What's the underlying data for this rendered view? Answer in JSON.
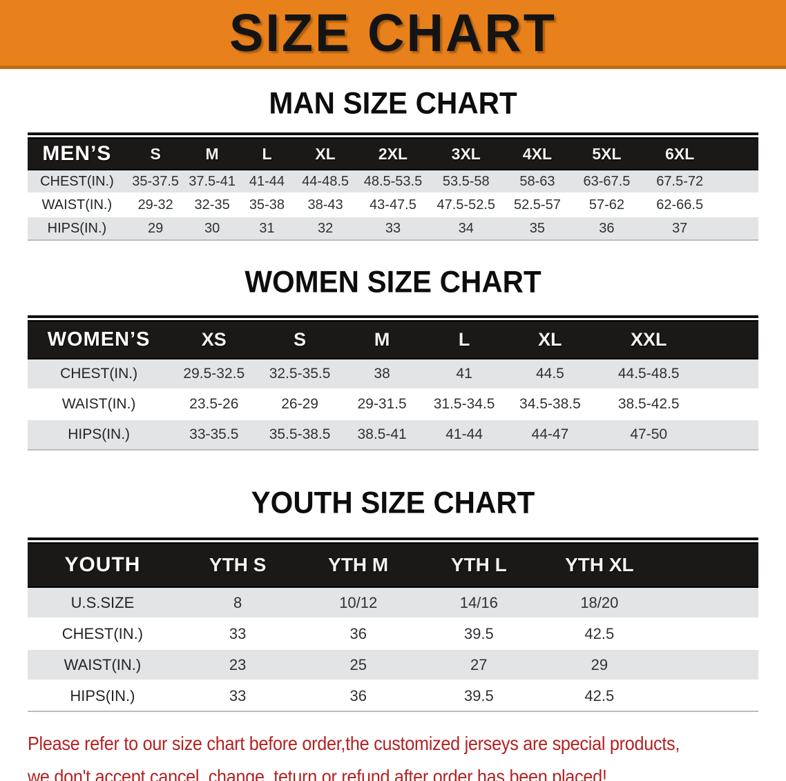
{
  "banner": {
    "title": "SIZE CHART"
  },
  "sections": [
    {
      "title": "MAN SIZE CHART",
      "table": {
        "label": "MEN’S",
        "columns": [
          "S",
          "M",
          "L",
          "XL",
          "2XL",
          "3XL",
          "4XL",
          "5XL",
          "6XL"
        ],
        "rows": [
          {
            "label": "CHEST(IN.)",
            "values": [
              "35-37.5",
              "37.5-41",
              "41-44",
              "44-48.5",
              "48.5-53.5",
              "53.5-58",
              "58-63",
              "63-67.5",
              "67.5-72"
            ]
          },
          {
            "label": "WAIST(IN.)",
            "values": [
              "29-32",
              "32-35",
              "35-38",
              "38-43",
              "43-47.5",
              "47.5-52.5",
              "52.5-57",
              "57-62",
              "62-66.5"
            ]
          },
          {
            "label": "HIPS(IN.)",
            "values": [
              "29",
              "30",
              "31",
              "32",
              "33",
              "34",
              "35",
              "36",
              "37"
            ]
          }
        ]
      }
    },
    {
      "title": "WOMEN SIZE CHART",
      "table": {
        "label": "WOMEN’S",
        "columns": [
          "XS",
          "S",
          "M",
          "L",
          "XL",
          "XXL"
        ],
        "rows": [
          {
            "label": "CHEST(IN.)",
            "values": [
              "29.5-32.5",
              "32.5-35.5",
              "38",
              "41",
              "44.5",
              "44.5-48.5"
            ]
          },
          {
            "label": "WAIST(IN.)",
            "values": [
              "23.5-26",
              "26-29",
              "29-31.5",
              "31.5-34.5",
              "34.5-38.5",
              "38.5-42.5"
            ]
          },
          {
            "label": "HIPS(IN.)",
            "values": [
              "33-35.5",
              "35.5-38.5",
              "38.5-41",
              "41-44",
              "44-47",
              "47-50"
            ]
          }
        ]
      }
    },
    {
      "title": "YOUTH SIZE CHART",
      "table": {
        "label": "YOUTH",
        "columns": [
          "YTH S",
          "YTH M",
          "YTH L",
          "YTH XL"
        ],
        "rows": [
          {
            "label": "U.S.SIZE",
            "values": [
              "8",
              "10/12",
              "14/16",
              "18/20"
            ]
          },
          {
            "label": "CHEST(IN.)",
            "values": [
              "33",
              "36",
              "39.5",
              "42.5"
            ]
          },
          {
            "label": "WAIST(IN.)",
            "values": [
              "23",
              "25",
              "27",
              "29"
            ]
          },
          {
            "label": "HIPS(IN.)",
            "values": [
              "33",
              "36",
              "39.5",
              "42.5"
            ]
          }
        ]
      }
    }
  ],
  "footer": {
    "line1": "Please refer to our size chart before order,the customized jerseys are special products,",
    "line2": "we don't accept cancel, change, teturn or refund after order has been placed!"
  },
  "colors": {
    "banner_bg": "#E8811B",
    "banner_edge": "#C2690F",
    "header_bar": "#1B1917",
    "stripe_row": "#E3E4E5",
    "warning_text": "#B22222"
  }
}
